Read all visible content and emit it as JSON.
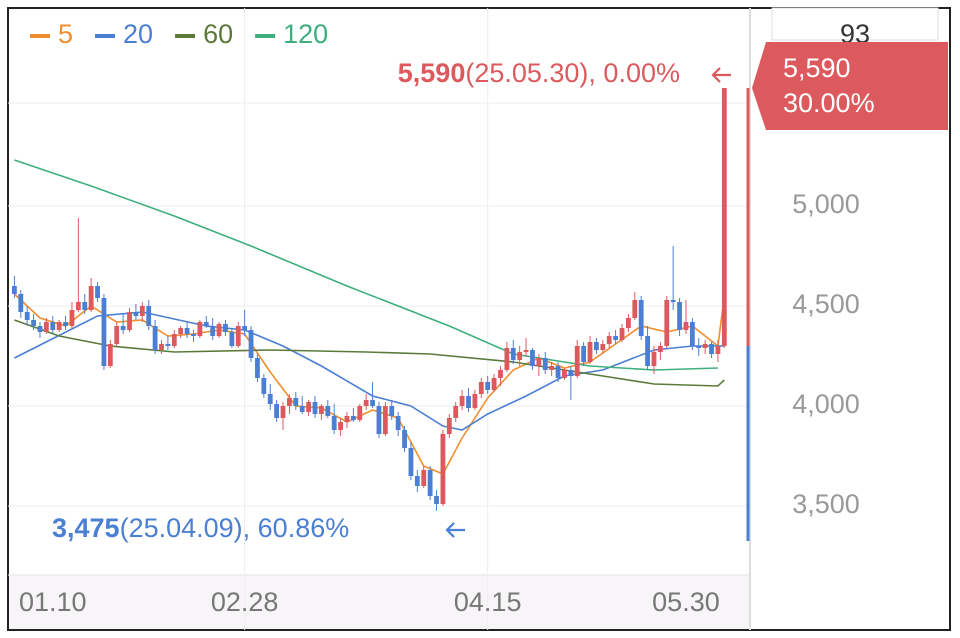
{
  "chart_data": {
    "type": "candlestick",
    "legend": {
      "corner": "top-left"
    },
    "series": [
      {
        "name": "5",
        "color": "#ef8f2f",
        "x": [
          0,
          4,
          8,
          12,
          16,
          20,
          24,
          28,
          32,
          36,
          40,
          44,
          48,
          52,
          56,
          60,
          64,
          67,
          70,
          74,
          78,
          82,
          86,
          90,
          94,
          98,
          102,
          106,
          110,
          111
        ],
        "values": [
          4560,
          4440,
          4400,
          4500,
          4420,
          4430,
          4350,
          4360,
          4380,
          4360,
          4170,
          4000,
          3990,
          3920,
          3980,
          3940,
          3700,
          3660,
          3840,
          4040,
          4180,
          4240,
          4190,
          4220,
          4310,
          4400,
          4370,
          4400,
          4300,
          4550
        ]
      },
      {
        "name": "20",
        "color": "#4a7fd4",
        "x": [
          0,
          13,
          20,
          30,
          36,
          42,
          48,
          56,
          62,
          67,
          70,
          74,
          80,
          86,
          92,
          100,
          106,
          111
        ],
        "values": [
          4240,
          4450,
          4470,
          4400,
          4380,
          4300,
          4200,
          4050,
          4000,
          3900,
          3880,
          3960,
          4050,
          4150,
          4180,
          4280,
          4300,
          4300
        ]
      },
      {
        "name": "60",
        "color": "#5b7a3a",
        "x": [
          0,
          7,
          15,
          25,
          40,
          55,
          65,
          78,
          90,
          100,
          110,
          111
        ],
        "values": [
          4430,
          4350,
          4300,
          4270,
          4280,
          4270,
          4260,
          4220,
          4160,
          4110,
          4100,
          4130
        ]
      },
      {
        "name": "120",
        "color": "#3fae7e",
        "x": [
          0,
          12,
          25,
          37,
          52,
          68,
          78,
          90,
          100,
          110
        ],
        "values": [
          5230,
          5100,
          4950,
          4800,
          4600,
          4400,
          4260,
          4200,
          4180,
          4190
        ]
      }
    ],
    "up_color": "#dc5a5e",
    "down_color": "#4a7fd4",
    "candles": [
      [
        4600,
        4650,
        4540,
        4560
      ],
      [
        4560,
        4580,
        4440,
        4470
      ],
      [
        4470,
        4500,
        4400,
        4430
      ],
      [
        4430,
        4460,
        4380,
        4400
      ],
      [
        4400,
        4420,
        4340,
        4370
      ],
      [
        4370,
        4440,
        4360,
        4420
      ],
      [
        4420,
        4450,
        4360,
        4380
      ],
      [
        4380,
        4430,
        4370,
        4420
      ],
      [
        4420,
        4450,
        4380,
        4400
      ],
      [
        4400,
        4520,
        4390,
        4480
      ],
      [
        4480,
        4940,
        4470,
        4520
      ],
      [
        4520,
        4560,
        4460,
        4480
      ],
      [
        4480,
        4640,
        4470,
        4600
      ],
      [
        4600,
        4620,
        4520,
        4540
      ],
      [
        4540,
        4560,
        4180,
        4200
      ],
      [
        4200,
        4330,
        4190,
        4310
      ],
      [
        4310,
        4420,
        4300,
        4400
      ],
      [
        4400,
        4460,
        4360,
        4380
      ],
      [
        4380,
        4490,
        4370,
        4470
      ],
      [
        4470,
        4510,
        4430,
        4450
      ],
      [
        4450,
        4520,
        4420,
        4500
      ],
      [
        4500,
        4530,
        4380,
        4400
      ],
      [
        4400,
        4430,
        4260,
        4280
      ],
      [
        4280,
        4330,
        4260,
        4310
      ],
      [
        4310,
        4350,
        4280,
        4300
      ],
      [
        4300,
        4380,
        4290,
        4360
      ],
      [
        4360,
        4400,
        4340,
        4390
      ],
      [
        4390,
        4420,
        4340,
        4360
      ],
      [
        4360,
        4380,
        4320,
        4350
      ],
      [
        4350,
        4430,
        4340,
        4420
      ],
      [
        4420,
        4450,
        4390,
        4400
      ],
      [
        4400,
        4440,
        4330,
        4350
      ],
      [
        4350,
        4420,
        4340,
        4410
      ],
      [
        4410,
        4430,
        4350,
        4370
      ],
      [
        4370,
        4390,
        4290,
        4300
      ],
      [
        4300,
        4420,
        4290,
        4400
      ],
      [
        4400,
        4480,
        4350,
        4380
      ],
      [
        4380,
        4400,
        4220,
        4240
      ],
      [
        4240,
        4260,
        4120,
        4140
      ],
      [
        4140,
        4160,
        4040,
        4060
      ],
      [
        4060,
        4110,
        3980,
        4010
      ],
      [
        4010,
        4030,
        3920,
        3940
      ],
      [
        3940,
        4020,
        3880,
        4000
      ],
      [
        4000,
        4060,
        3960,
        4040
      ],
      [
        4040,
        4070,
        3980,
        4000
      ],
      [
        4000,
        4050,
        3960,
        3970
      ],
      [
        3970,
        4030,
        3950,
        4020
      ],
      [
        4020,
        4050,
        3940,
        3960
      ],
      [
        3960,
        4010,
        3930,
        4000
      ],
      [
        4000,
        4030,
        3940,
        3950
      ],
      [
        3950,
        4010,
        3860,
        3880
      ],
      [
        3880,
        3940,
        3850,
        3920
      ],
      [
        3920,
        3970,
        3890,
        3950
      ],
      [
        3950,
        3990,
        3920,
        3930
      ],
      [
        3930,
        4010,
        3920,
        4000
      ],
      [
        4000,
        4060,
        3980,
        4030
      ],
      [
        4030,
        4120,
        3990,
        4000
      ],
      [
        4000,
        4020,
        3840,
        3860
      ],
      [
        3860,
        4020,
        3850,
        4000
      ],
      [
        4000,
        4030,
        3930,
        3950
      ],
      [
        3950,
        3970,
        3850,
        3880
      ],
      [
        3880,
        3900,
        3770,
        3790
      ],
      [
        3790,
        3820,
        3630,
        3650
      ],
      [
        3650,
        3680,
        3570,
        3600
      ],
      [
        3600,
        3700,
        3590,
        3680
      ],
      [
        3680,
        3700,
        3530,
        3550
      ],
      [
        3550,
        3580,
        3475,
        3510
      ],
      [
        3510,
        3880,
        3500,
        3860
      ],
      [
        3860,
        3960,
        3840,
        3940
      ],
      [
        3940,
        4020,
        3920,
        4000
      ],
      [
        4000,
        4080,
        3980,
        4050
      ],
      [
        4050,
        4090,
        3970,
        3990
      ],
      [
        3990,
        4080,
        3980,
        4060
      ],
      [
        4060,
        4140,
        4040,
        4120
      ],
      [
        4120,
        4150,
        4060,
        4080
      ],
      [
        4080,
        4160,
        4070,
        4140
      ],
      [
        4140,
        4200,
        4100,
        4180
      ],
      [
        4180,
        4320,
        4170,
        4290
      ],
      [
        4290,
        4330,
        4210,
        4230
      ],
      [
        4230,
        4300,
        4200,
        4270
      ],
      [
        4270,
        4340,
        4250,
        4280
      ],
      [
        4280,
        4290,
        4180,
        4200
      ],
      [
        4200,
        4260,
        4150,
        4240
      ],
      [
        4240,
        4270,
        4160,
        4180
      ],
      [
        4180,
        4220,
        4150,
        4200
      ],
      [
        4200,
        4220,
        4120,
        4140
      ],
      [
        4140,
        4190,
        4130,
        4180
      ],
      [
        4180,
        4200,
        4030,
        4150
      ],
      [
        4150,
        4330,
        4140,
        4300
      ],
      [
        4300,
        4320,
        4200,
        4220
      ],
      [
        4220,
        4350,
        4210,
        4320
      ],
      [
        4320,
        4340,
        4260,
        4280
      ],
      [
        4280,
        4330,
        4260,
        4310
      ],
      [
        4310,
        4370,
        4290,
        4350
      ],
      [
        4350,
        4380,
        4310,
        4330
      ],
      [
        4330,
        4410,
        4320,
        4390
      ],
      [
        4390,
        4460,
        4370,
        4440
      ],
      [
        4440,
        4570,
        4430,
        4530
      ],
      [
        4530,
        4550,
        4330,
        4350
      ],
      [
        4350,
        4400,
        4180,
        4200
      ],
      [
        4200,
        4300,
        4160,
        4270
      ],
      [
        4270,
        4320,
        4230,
        4300
      ],
      [
        4300,
        4550,
        4290,
        4530
      ],
      [
        4530,
        4800,
        4480,
        4520
      ],
      [
        4520,
        4540,
        4350,
        4380
      ],
      [
        4380,
        4530,
        4360,
        4420
      ],
      [
        4420,
        4440,
        4280,
        4300
      ],
      [
        4300,
        4340,
        4250,
        4290
      ],
      [
        4290,
        4330,
        4260,
        4310
      ],
      [
        4310,
        4320,
        4240,
        4260
      ],
      [
        4260,
        4330,
        4220,
        4300
      ],
      [
        4300,
        5590,
        4290,
        5590
      ]
    ],
    "xlim": [
      -1,
      114.7
    ],
    "ylim": [
      3155,
      5990
    ],
    "xticks": [
      {
        "value": 6,
        "label": "01.10"
      },
      {
        "value": 36,
        "label": "02.28"
      },
      {
        "value": 74,
        "label": "04.15"
      },
      {
        "value": 105,
        "label": "05.30"
      }
    ],
    "yticks": [
      {
        "value": 3500,
        "label": "3,500"
      },
      {
        "value": 4000,
        "label": "4,000"
      },
      {
        "value": 4500,
        "label": "4,500"
      },
      {
        "value": 5000,
        "label": "5,000"
      }
    ],
    "grid": true,
    "high_annotation": {
      "value": 5590,
      "label": "5,590",
      "suffix": "(25.05.30), 0.00%"
    },
    "low_annotation": {
      "value": 3475,
      "label": "3,475",
      "suffix": "(25.04.09), 60.86%"
    },
    "price_tag": {
      "value": 5590,
      "label": "5,590",
      "change": "30.00%"
    },
    "top_box": "93"
  }
}
